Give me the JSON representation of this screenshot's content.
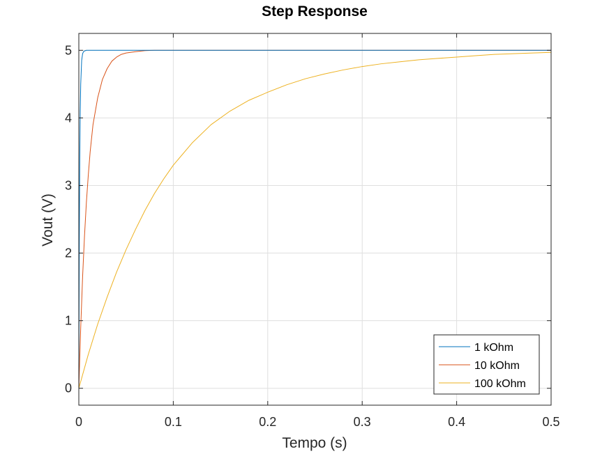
{
  "chart_data": {
    "type": "line",
    "title": "Step Response",
    "xlabel": "Tempo (s)",
    "ylabel": "Vout (V)",
    "xlim": [
      0,
      0.5
    ],
    "ylim": [
      -0.25,
      5.25
    ],
    "xticks": [
      0,
      0.1,
      0.2,
      0.3,
      0.4,
      0.5
    ],
    "xtick_labels": [
      "0",
      "0.1",
      "0.2",
      "0.3",
      "0.4",
      "0.5"
    ],
    "yticks": [
      0,
      1,
      2,
      3,
      4,
      5
    ],
    "ytick_labels": [
      "0",
      "1",
      "2",
      "3",
      "4",
      "5"
    ],
    "grid": true,
    "legend_position": "bottom-right",
    "series": [
      {
        "name": "1 kOhm",
        "color": "#0072bd",
        "x": [
          0,
          0.0005,
          0.001,
          0.0015,
          0.002,
          0.003,
          0.004,
          0.005,
          0.006,
          0.008,
          0.01,
          0.5
        ],
        "y": [
          0,
          2.2,
          3.4,
          4.1,
          4.5,
          4.85,
          4.95,
          4.98,
          4.99,
          5.0,
          5.0,
          5.0
        ]
      },
      {
        "name": "10 kOhm",
        "color": "#d95319",
        "x": [
          0,
          0.002,
          0.004,
          0.006,
          0.008,
          0.01,
          0.012,
          0.015,
          0.02,
          0.025,
          0.03,
          0.035,
          0.04,
          0.045,
          0.05,
          0.06,
          0.07,
          0.08,
          0.1,
          0.5
        ],
        "y": [
          0,
          0.9,
          1.65,
          2.25,
          2.75,
          3.15,
          3.5,
          3.9,
          4.3,
          4.57,
          4.73,
          4.84,
          4.9,
          4.94,
          4.96,
          4.98,
          4.995,
          5.0,
          5.0,
          5.0
        ]
      },
      {
        "name": "100 kOhm",
        "color": "#edb120",
        "x": [
          0,
          0.01,
          0.02,
          0.03,
          0.04,
          0.05,
          0.06,
          0.07,
          0.08,
          0.09,
          0.1,
          0.12,
          0.14,
          0.16,
          0.18,
          0.2,
          0.22,
          0.24,
          0.26,
          0.28,
          0.3,
          0.32,
          0.34,
          0.36,
          0.38,
          0.4,
          0.42,
          0.44,
          0.46,
          0.48,
          0.5
        ],
        "y": [
          0,
          0.5,
          0.95,
          1.35,
          1.72,
          2.05,
          2.35,
          2.63,
          2.88,
          3.1,
          3.3,
          3.63,
          3.9,
          4.1,
          4.26,
          4.38,
          4.49,
          4.58,
          4.65,
          4.71,
          4.76,
          4.8,
          4.83,
          4.86,
          4.88,
          4.9,
          4.92,
          4.94,
          4.95,
          4.96,
          4.97
        ]
      }
    ]
  }
}
